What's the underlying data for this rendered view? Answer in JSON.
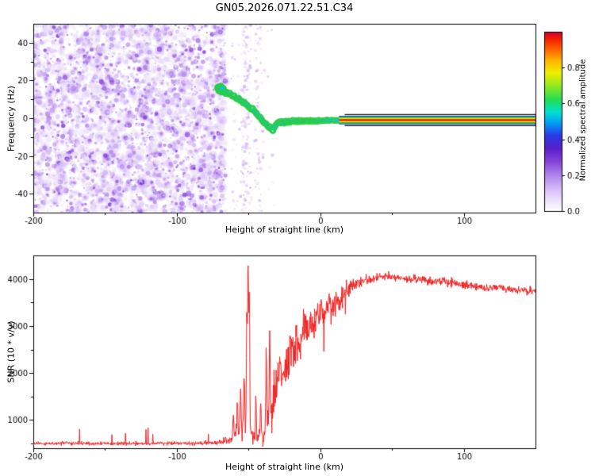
{
  "title": "GN05.2026.071.22.51.C34",
  "colors": {
    "background": "#ffffff",
    "axis": "#000000",
    "snr_line": "#ee2222",
    "trace_halo": "#2ecc40",
    "trace_core": "#00c8f0",
    "trace_hot": "#f2f200",
    "band_green": "#28c828",
    "band_yellow": "#f0f000",
    "band_red": "#ee1010",
    "band_blue": "#2038d0",
    "band_edge": "#14142e"
  },
  "chart_data": [
    {
      "type": "heatmap",
      "title": "GN05.2026.071.22.51.C34",
      "xlabel": "Height of straight line (km)",
      "ylabel": "Frequency (Hz)",
      "xlim": [
        -200,
        150
      ],
      "ylim": [
        -50,
        50
      ],
      "xticks": [
        -200,
        -100,
        0,
        100
      ],
      "xticks_minor": [
        -150,
        -50,
        50
      ],
      "yticks": [
        -40,
        -20,
        0,
        20,
        40
      ],
      "yticks_minor": [
        -30,
        -10,
        10,
        30
      ],
      "grid": false,
      "colorbar": {
        "label": "Normalized spectral amplitude",
        "range": [
          0,
          1
        ],
        "ticks": [
          0.0,
          0.2,
          0.4,
          0.6,
          0.8
        ],
        "stops": [
          [
            0,
            "#ffffff"
          ],
          [
            0.05,
            "#efe6fa"
          ],
          [
            0.12,
            "#d9befc"
          ],
          [
            0.2,
            "#b083e8"
          ],
          [
            0.28,
            "#8340d6"
          ],
          [
            0.35,
            "#5a20cc"
          ],
          [
            0.42,
            "#2a3ae4"
          ],
          [
            0.49,
            "#009cf4"
          ],
          [
            0.55,
            "#00e0d0"
          ],
          [
            0.62,
            "#22dd55"
          ],
          [
            0.7,
            "#96e81e"
          ],
          [
            0.77,
            "#eef000"
          ],
          [
            0.84,
            "#ffb400"
          ],
          [
            0.9,
            "#ff6400"
          ],
          [
            0.96,
            "#f51e00"
          ],
          [
            1,
            "#cf0040"
          ]
        ]
      },
      "noise": {
        "dense_x_range": [
          -200,
          -66
        ],
        "sparse_band_centers": [
          -52,
          -43
        ],
        "sparse_x_range": [
          -64,
          -30
        ]
      },
      "signal_trace": [
        [
          -71,
          16
        ],
        [
          -70.2,
          15
        ],
        [
          -69.5,
          16.5
        ],
        [
          -68.7,
          14.5
        ],
        [
          -68,
          15.5
        ],
        [
          -67,
          14
        ],
        [
          -66,
          13
        ],
        [
          -65,
          13.6
        ],
        [
          -64,
          12.8
        ],
        [
          -63,
          13.2
        ],
        [
          -62,
          12.2
        ],
        [
          -61,
          11.6
        ],
        [
          -60,
          12
        ],
        [
          -59,
          10.8
        ],
        [
          -58,
          10.2
        ],
        [
          -57,
          10.6
        ],
        [
          -56,
          9.6
        ],
        [
          -55,
          9
        ],
        [
          -54,
          8.2
        ],
        [
          -53,
          8.6
        ],
        [
          -52,
          7.6
        ],
        [
          -51,
          7
        ],
        [
          -50,
          6.2
        ],
        [
          -49,
          5.4
        ],
        [
          -48,
          4.8
        ],
        [
          -47,
          5.2
        ],
        [
          -46,
          4
        ],
        [
          -45,
          3
        ],
        [
          -44,
          2
        ],
        [
          -43,
          1
        ],
        [
          -42,
          0.4
        ],
        [
          -41,
          -0.6
        ],
        [
          -40,
          -1.6
        ],
        [
          -39,
          -2.4
        ],
        [
          -38,
          -3
        ],
        [
          -37,
          -4
        ],
        [
          -36,
          -5
        ],
        [
          -35,
          -4.4
        ],
        [
          -34,
          -5.6
        ],
        [
          -33,
          -6.6
        ],
        [
          -32,
          -5
        ],
        [
          -31,
          -3.6
        ],
        [
          -30,
          -2.6
        ],
        [
          -29,
          -2
        ],
        [
          -28,
          -2.6
        ],
        [
          -27,
          -1.6
        ],
        [
          -26,
          -2.2
        ],
        [
          -25,
          -2.6
        ],
        [
          -24,
          -1.6
        ],
        [
          -23,
          -2.2
        ],
        [
          -22,
          -1.6
        ],
        [
          -21,
          -2.2
        ],
        [
          -20,
          -1.6
        ],
        [
          -19,
          -1.2
        ],
        [
          -18,
          -1.8
        ],
        [
          -17,
          -1.2
        ],
        [
          -16,
          -1.8
        ],
        [
          -15,
          -1.2
        ],
        [
          -14,
          -1.8
        ],
        [
          -13,
          -1.2
        ],
        [
          -12,
          -1.8
        ],
        [
          -11,
          -1.2
        ],
        [
          -10,
          -1.6
        ],
        [
          -9,
          -1.2
        ],
        [
          -8,
          -1.6
        ],
        [
          -7,
          -1.2
        ],
        [
          -6,
          -1.6
        ],
        [
          -5,
          -1.2
        ],
        [
          -4,
          -1.6
        ],
        [
          -3,
          -1.2
        ],
        [
          -2,
          -1.6
        ],
        [
          -1,
          -1.2
        ],
        [
          0,
          -1.4
        ],
        [
          1.5,
          -1.2
        ],
        [
          3,
          -1.4
        ],
        [
          4.5,
          -1.1
        ],
        [
          6,
          -1.3
        ],
        [
          8,
          -1.1
        ],
        [
          10,
          -1.2
        ],
        [
          12,
          -1.1
        ]
      ],
      "carrier_line": {
        "x_range": [
          13,
          150
        ],
        "frequency": -1
      }
    },
    {
      "type": "line",
      "xlabel": "Height of straight line (km)",
      "ylabel": "SNR (10 * v/v)",
      "xlim": [
        -200,
        150
      ],
      "ylim": [
        400,
        4500
      ],
      "xticks": [
        -200,
        -100,
        0,
        100
      ],
      "xticks_minor": [
        -150,
        -50,
        50
      ],
      "yticks": [
        1000,
        2000,
        3000,
        4000
      ],
      "yticks_minor": [
        500,
        1500,
        2500,
        3500
      ],
      "grid": false,
      "series": [
        {
          "name": "SNR",
          "color": "#ee2222",
          "envelope": [
            [
              -200,
              500,
              55
            ],
            [
              -90,
              505,
              55
            ],
            [
              -75,
              515,
              65
            ],
            [
              -68,
              540,
              90
            ],
            [
              -62,
              600,
              160
            ],
            [
              -58,
              680,
              260
            ],
            [
              -56,
              760,
              320
            ],
            [
              -54,
              800,
              340
            ],
            [
              -52,
              820,
              360
            ],
            [
              -50,
              780,
              320
            ],
            [
              -48,
              700,
              280
            ],
            [
              -46,
              640,
              220
            ],
            [
              -44,
              620,
              200
            ],
            [
              -42,
              640,
              220
            ],
            [
              -40,
              680,
              260
            ],
            [
              -38,
              820,
              380
            ],
            [
              -36,
              1000,
              520
            ],
            [
              -34,
              1250,
              620
            ],
            [
              -32,
              1500,
              680
            ],
            [
              -30,
              1750,
              720
            ],
            [
              -28,
              1950,
              740
            ],
            [
              -26,
              2100,
              720
            ],
            [
              -24,
              2250,
              760
            ],
            [
              -22,
              2350,
              780
            ],
            [
              -20,
              2450,
              760
            ],
            [
              -18,
              2550,
              720
            ],
            [
              -16,
              2650,
              700
            ],
            [
              -14,
              2750,
              660
            ],
            [
              -12,
              2850,
              640
            ],
            [
              -10,
              2950,
              620
            ],
            [
              -8,
              3000,
              600
            ],
            [
              -6,
              3080,
              560
            ],
            [
              -4,
              3150,
              540
            ],
            [
              -2,
              3220,
              520
            ],
            [
              0,
              3280,
              500
            ],
            [
              3,
              3350,
              470
            ],
            [
              6,
              3420,
              440
            ],
            [
              9,
              3480,
              420
            ],
            [
              12,
              3550,
              390
            ],
            [
              15,
              3620,
              350
            ],
            [
              18,
              3700,
              300
            ],
            [
              22,
              3820,
              220
            ],
            [
              26,
              3900,
              180
            ],
            [
              30,
              3950,
              160
            ],
            [
              35,
              4000,
              150
            ],
            [
              40,
              4020,
              145
            ],
            [
              45,
              4030,
              140
            ],
            [
              50,
              4040,
              140
            ],
            [
              55,
              4030,
              140
            ],
            [
              60,
              4010,
              135
            ],
            [
              70,
              3980,
              135
            ],
            [
              80,
              3960,
              130
            ],
            [
              90,
              3920,
              130
            ],
            [
              100,
              3880,
              125
            ],
            [
              110,
              3840,
              125
            ],
            [
              120,
              3820,
              120
            ],
            [
              130,
              3790,
              120
            ],
            [
              140,
              3760,
              120
            ],
            [
              150,
              3730,
              120
            ]
          ],
          "spikes": [
            [
              -60.5,
              1050,
              0.5
            ],
            [
              -57.8,
              1350,
              0.5
            ],
            [
              -55.5,
              1600,
              0.5
            ],
            [
              -53,
              2000,
              0.5
            ],
            [
              -51.2,
              3000,
              0.45
            ],
            [
              -50.3,
              4470,
              0.5
            ],
            [
              -49.4,
              3650,
              0.4
            ],
            [
              -44.8,
              1550,
              0.4
            ],
            [
              -41.5,
              1450,
              0.4
            ],
            [
              -37.6,
              2450,
              0.45
            ],
            [
              -35.2,
              2650,
              0.45
            ]
          ]
        }
      ]
    }
  ]
}
